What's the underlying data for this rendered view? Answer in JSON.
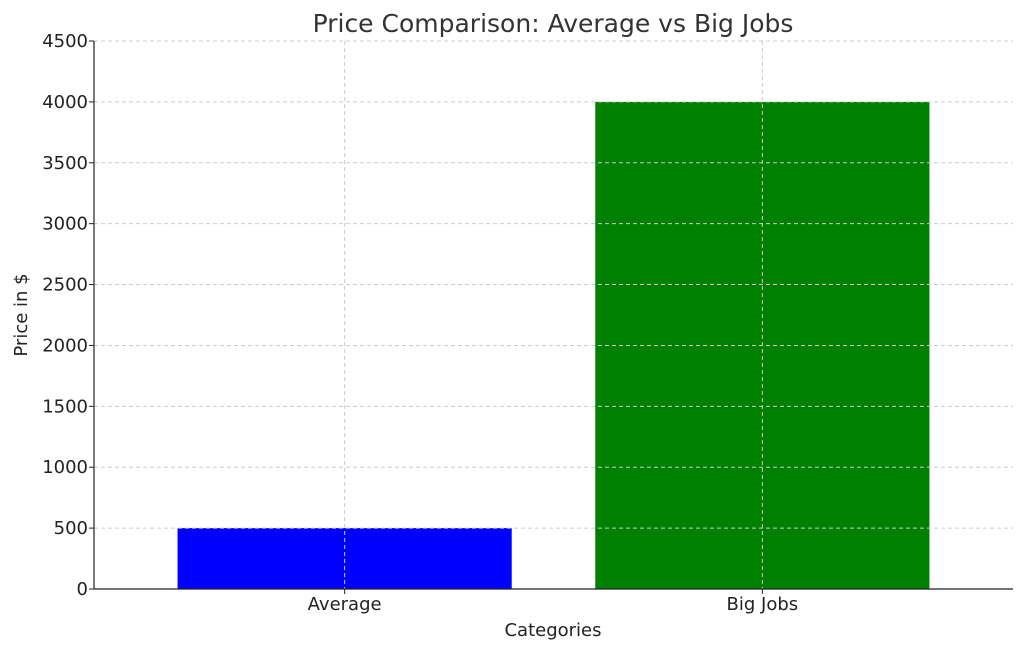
{
  "chart_data": {
    "type": "bar",
    "title": "Price Comparison: Average vs Big Jobs",
    "xlabel": "Categories",
    "ylabel": "Price in $",
    "categories": [
      "Average",
      "Big Jobs"
    ],
    "values": [
      500,
      4000
    ],
    "colors": [
      "#0000ff",
      "#008000"
    ],
    "ylim": [
      0,
      4500
    ],
    "yticks": [
      0,
      500,
      1000,
      1500,
      2000,
      2500,
      3000,
      3500,
      4000,
      4500
    ],
    "grid": true,
    "grid_style": "dashed",
    "legend": "none"
  }
}
